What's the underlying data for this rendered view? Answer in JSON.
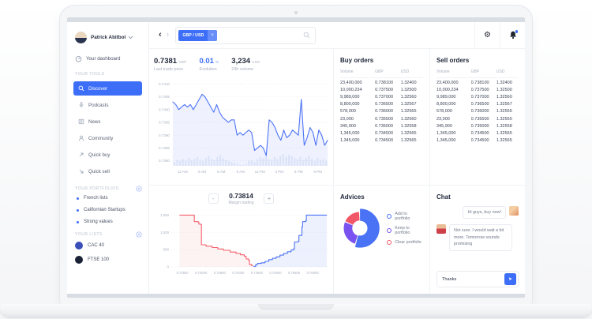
{
  "user": {
    "name": "Patrick Abitbol"
  },
  "window": {
    "tag": "GBP / USD",
    "tag_close": "×",
    "back": "‹",
    "forward": "›"
  },
  "sidebar": {
    "dashboard": "Your dashboard",
    "tools_label": "YOUR TOOLS",
    "tools": [
      {
        "label": "Discover",
        "active": true
      },
      {
        "label": "Podcasts"
      },
      {
        "label": "News"
      },
      {
        "label": "Community"
      },
      {
        "label": "Quick buy"
      },
      {
        "label": "Quick sell"
      }
    ],
    "portfolios_label": "YOUR PORTFOLIOS",
    "portfolios": [
      {
        "label": "French lists"
      },
      {
        "label": "Californian Startups"
      },
      {
        "label": "Strong values"
      }
    ],
    "lists_label": "YOUR LISTS",
    "lists": [
      {
        "label": "CAC 40",
        "color": "#3b4fb8"
      },
      {
        "label": "FTSE 100",
        "color": "#1b2237"
      }
    ]
  },
  "stats": [
    {
      "value": "0.7381",
      "unit": "GBP",
      "label": "Last trade price"
    },
    {
      "value": "0.01",
      "unit": "%",
      "label": "Evolution"
    },
    {
      "value": "3,234",
      "unit": "USD",
      "label": "24h volume"
    }
  ],
  "buy_orders": {
    "title": "Buy orders",
    "headers": [
      "Volume",
      "GBP",
      "USD"
    ],
    "rows": [
      [
        "23,400,000",
        "0.738100",
        "1.32400"
      ],
      [
        "10,000,234",
        "0.737500",
        "1.32500"
      ],
      [
        "9,989,000",
        "0.737000",
        "1.32560"
      ],
      [
        "8,800,000",
        "0.736500",
        "1.32567"
      ],
      [
        "578,000",
        "0.736000",
        "1.32565"
      ],
      [
        "23,000",
        "0.735500",
        "1.32560"
      ],
      [
        "345,900",
        "0.735000",
        "1.32558"
      ],
      [
        "1,345,000",
        "0.734500",
        "1.32565"
      ],
      [
        "1,345,000",
        "0.734500",
        "1.32565"
      ]
    ]
  },
  "sell_orders": {
    "title": "Sell orders",
    "headers": [
      "Volume",
      "GBP",
      "USD"
    ],
    "rows": [
      [
        "23,400,000",
        "0.738100",
        "1.32400"
      ],
      [
        "10,000,234",
        "0.737500",
        "1.32500"
      ],
      [
        "9,989,000",
        "0.737000",
        "1.32560"
      ],
      [
        "8,800,000",
        "0.736500",
        "1.32567"
      ],
      [
        "578,000",
        "0.736000",
        "1.32565"
      ],
      [
        "23,000",
        "0.735500",
        "1.32560"
      ],
      [
        "345,900",
        "0.735000",
        "1.32558"
      ],
      [
        "1,345,000",
        "0.734500",
        "1.32565"
      ],
      [
        "1,345,000",
        "0.734500",
        "1.32565"
      ]
    ]
  },
  "margin": {
    "minus": "-",
    "value": "0.73814",
    "label": "Margin trading",
    "plus": "+"
  },
  "advices": {
    "title": "Advices"
  },
  "chat": {
    "title": "Chat",
    "messages": [
      {
        "side": "right",
        "text": "Hi guys, buy now!"
      },
      {
        "side": "left",
        "text": "Not sure. I would wait a bit more. Tomorrow sounds promising"
      }
    ],
    "input_value": "Thanks"
  },
  "colors": {
    "accent": "#3d6ef7",
    "sell": "#f4565f",
    "purple": "#7a52f0"
  },
  "chart_data": [
    {
      "type": "area",
      "title": "GBP/USD intraday price with volume",
      "x_ticks": [
        "12 AM",
        "3 AM",
        "6 AM",
        "9 AM",
        "12 PM",
        "3 PM",
        "6 PM",
        "9 PM"
      ],
      "y_ticks": [
        "0.7410",
        "0.7405",
        "0.7400",
        "0.7395",
        "0.7390",
        "0.7385",
        "0.7380"
      ],
      "ylim": [
        0.7378,
        0.7412
      ],
      "line_color": "#4c73f5",
      "values": [
        0.7403,
        0.7402,
        0.74,
        0.7401,
        0.7402,
        0.7401,
        0.7402,
        0.74,
        0.7402,
        0.7404,
        0.7406,
        0.7405,
        0.7403,
        0.7401,
        0.7399,
        0.7402,
        0.7399,
        0.7397,
        0.7396,
        0.7395,
        0.7396,
        0.7396,
        0.739,
        0.7391,
        0.739,
        0.7391,
        0.7392,
        0.7391,
        0.7384,
        0.7385,
        0.7386,
        0.7385,
        0.7382,
        0.7396,
        0.7395,
        0.7393,
        0.739,
        0.7388,
        0.7392,
        0.7389,
        0.739,
        0.7392,
        0.7391,
        0.739,
        0.7404,
        0.7386,
        0.7389,
        0.7393,
        0.7391,
        0.7386,
        0.7392,
        0.739,
        0.7386,
        0.7388
      ],
      "volume": [
        4,
        6,
        5,
        7,
        5,
        8,
        6,
        7,
        9,
        6,
        5,
        8,
        10,
        7,
        6,
        9,
        11,
        8,
        6,
        5,
        4,
        3,
        2,
        1,
        1,
        2,
        5,
        6,
        4,
        7,
        9,
        8,
        10,
        7,
        6,
        9,
        7,
        10,
        12,
        9,
        11,
        10,
        8,
        7,
        9,
        6,
        8,
        10,
        7,
        5,
        8,
        6,
        7,
        5
      ]
    },
    {
      "type": "area",
      "subtype": "depth",
      "title": "Order book depth",
      "x_ticks": [
        "0.72500",
        "0.73000",
        "0.73500",
        "0.74000",
        "0.74500",
        "0.75000",
        "0.75500",
        "0.76000"
      ],
      "y_ticks": [
        "1,500",
        "1,000",
        "500",
        "0"
      ],
      "y_tick_values": [
        1500,
        1000,
        500,
        0
      ],
      "xlim": [
        0.722,
        0.764
      ],
      "ylim": [
        0,
        1600
      ],
      "bid_color": "#f4606a",
      "ask_color": "#4c73f5",
      "bids": [
        [
          0.7242,
          1500
        ],
        [
          0.728,
          1500
        ],
        [
          0.7282,
          1310
        ],
        [
          0.7292,
          1300
        ],
        [
          0.7294,
          1240
        ],
        [
          0.7299,
          1230
        ],
        [
          0.7301,
          640
        ],
        [
          0.7312,
          630
        ],
        [
          0.7314,
          600
        ],
        [
          0.733,
          560
        ],
        [
          0.7345,
          520
        ],
        [
          0.736,
          480
        ],
        [
          0.7378,
          430
        ],
        [
          0.7394,
          390
        ],
        [
          0.7406,
          350
        ],
        [
          0.7416,
          310
        ],
        [
          0.7421,
          230
        ],
        [
          0.7428,
          190
        ],
        [
          0.743,
          70
        ],
        [
          0.7436,
          40
        ],
        [
          0.7438,
          15
        ]
      ],
      "asks": [
        [
          0.7441,
          15
        ],
        [
          0.7447,
          70
        ],
        [
          0.7452,
          100
        ],
        [
          0.7462,
          120
        ],
        [
          0.7472,
          160
        ],
        [
          0.7482,
          210
        ],
        [
          0.7492,
          250
        ],
        [
          0.7502,
          290
        ],
        [
          0.7512,
          340
        ],
        [
          0.7522,
          390
        ],
        [
          0.7532,
          440
        ],
        [
          0.7542,
          490
        ],
        [
          0.7549,
          530
        ],
        [
          0.7551,
          720
        ],
        [
          0.7561,
          740
        ],
        [
          0.7563,
          910
        ],
        [
          0.7571,
          1160
        ],
        [
          0.7573,
          1310
        ],
        [
          0.7581,
          1330
        ],
        [
          0.7583,
          1500
        ],
        [
          0.7638,
          1500
        ]
      ]
    },
    {
      "type": "pie",
      "title": "Advices",
      "slices": [
        {
          "label": "Add to portfolio",
          "value": 55,
          "color": "#4a72f5"
        },
        {
          "label": "Keep to portfolio",
          "value": 27,
          "color": "#7a52f0"
        },
        {
          "label": "Clear portfolio",
          "value": 18,
          "color": "#f25767"
        }
      ]
    }
  ]
}
